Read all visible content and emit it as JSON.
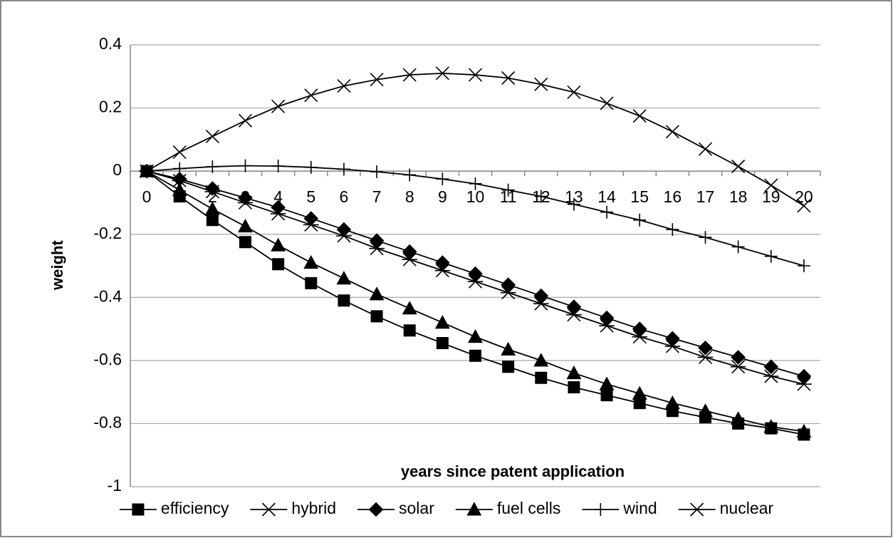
{
  "chart_data": {
    "type": "line",
    "x_label": "years since patent application",
    "y_label": "weight",
    "categories": [
      "0",
      "1",
      "2",
      "3",
      "4",
      "5",
      "6",
      "7",
      "8",
      "9",
      "10",
      "11",
      "12",
      "13",
      "14",
      "15",
      "16",
      "17",
      "18",
      "19",
      "20"
    ],
    "ylim": [
      -1,
      0.4
    ],
    "yticks": [
      0.4,
      0.2,
      0,
      -0.2,
      -0.4,
      -0.6,
      -0.8,
      -1
    ],
    "grid": true,
    "legend": "bottom",
    "series": [
      {
        "name": "efficiency",
        "color": "#000000",
        "marker": "square",
        "values": [
          0,
          -0.08,
          -0.155,
          -0.225,
          -0.295,
          -0.355,
          -0.41,
          -0.46,
          -0.505,
          -0.545,
          -0.585,
          -0.62,
          -0.655,
          -0.685,
          -0.71,
          -0.735,
          -0.76,
          -0.78,
          -0.8,
          -0.815,
          -0.835
        ]
      },
      {
        "name": "hybrid",
        "color": "#000000",
        "marker": "x",
        "values": [
          0,
          0.06,
          0.11,
          0.16,
          0.205,
          0.24,
          0.27,
          0.29,
          0.305,
          0.31,
          0.305,
          0.295,
          0.275,
          0.25,
          0.215,
          0.175,
          0.125,
          0.07,
          0.015,
          -0.045,
          -0.11
        ]
      },
      {
        "name": "solar",
        "color": "#000000",
        "marker": "diamond",
        "values": [
          0,
          -0.025,
          -0.055,
          -0.085,
          -0.115,
          -0.15,
          -0.185,
          -0.22,
          -0.255,
          -0.29,
          -0.325,
          -0.36,
          -0.395,
          -0.43,
          -0.465,
          -0.5,
          -0.53,
          -0.56,
          -0.59,
          -0.62,
          -0.65
        ]
      },
      {
        "name": "fuel cells",
        "color": "#000000",
        "marker": "triangle",
        "values": [
          0,
          -0.06,
          -0.12,
          -0.175,
          -0.235,
          -0.29,
          -0.34,
          -0.39,
          -0.435,
          -0.48,
          -0.525,
          -0.565,
          -0.6,
          -0.64,
          -0.675,
          -0.705,
          -0.735,
          -0.76,
          -0.785,
          -0.81,
          -0.825
        ]
      },
      {
        "name": "wind",
        "color": "#000000",
        "marker": "plus",
        "values": [
          0,
          0.008,
          0.014,
          0.017,
          0.016,
          0.012,
          0.006,
          -0.002,
          -0.012,
          -0.025,
          -0.04,
          -0.06,
          -0.08,
          -0.105,
          -0.13,
          -0.155,
          -0.185,
          -0.21,
          -0.24,
          -0.27,
          -0.3
        ]
      },
      {
        "name": "nuclear",
        "color": "#000000",
        "marker": "star",
        "values": [
          0,
          -0.03,
          -0.065,
          -0.1,
          -0.135,
          -0.17,
          -0.205,
          -0.245,
          -0.28,
          -0.315,
          -0.35,
          -0.385,
          -0.42,
          -0.455,
          -0.49,
          -0.525,
          -0.555,
          -0.59,
          -0.62,
          -0.65,
          -0.675
        ]
      }
    ]
  }
}
